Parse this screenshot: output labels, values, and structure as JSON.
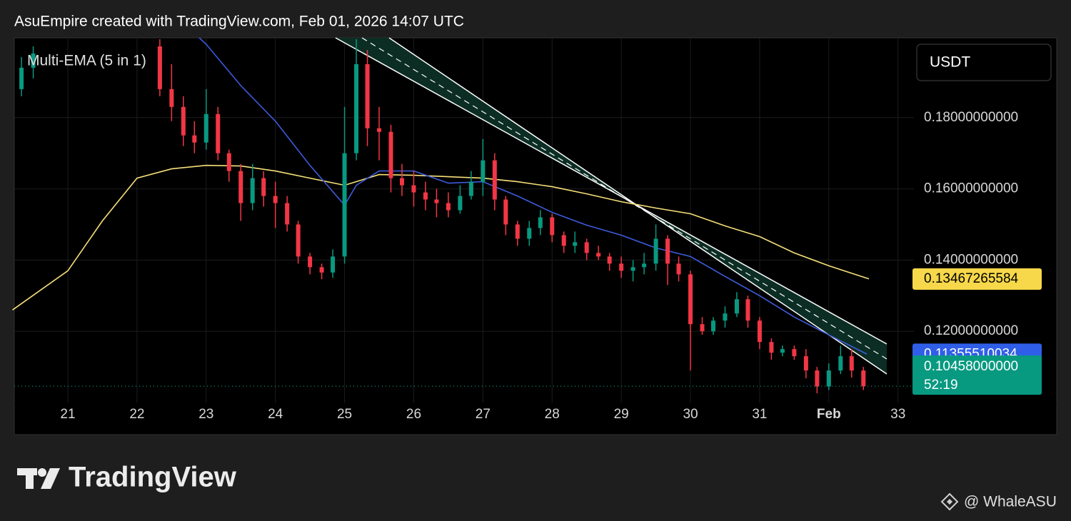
{
  "title": "AsuEmpire created with TradingView.com, Feb 01, 2026 14:07 UTC",
  "indicator_label": "Multi-EMA (5 in 1)",
  "currency": "USDT",
  "footer": {
    "brand": "TradingView",
    "author": "@ WhaleASU"
  },
  "chart_data": {
    "type": "candlestick",
    "up_color": "#089981",
    "down_color": "#f23645",
    "x": [
      20.33,
      20.5,
      22.33,
      22.5,
      22.67,
      22.83,
      23,
      23.17,
      23.33,
      23.5,
      23.67,
      23.83,
      24,
      24.17,
      24.33,
      24.5,
      24.67,
      24.83,
      25,
      25.17,
      25.33,
      25.5,
      25.67,
      25.83,
      26,
      26.17,
      26.33,
      26.5,
      26.67,
      26.83,
      27,
      27.17,
      27.33,
      27.5,
      27.67,
      27.83,
      28,
      28.17,
      28.33,
      28.5,
      28.67,
      28.83,
      29,
      29.17,
      29.33,
      29.5,
      29.67,
      29.83,
      30,
      30.17,
      30.33,
      30.5,
      30.67,
      30.83,
      31,
      31.17,
      31.33,
      31.5,
      31.67,
      31.83,
      32,
      32.17,
      32.33,
      32.5
    ],
    "open": [
      0.188,
      0.194,
      0.2,
      0.188,
      0.183,
      0.175,
      0.173,
      0.181,
      0.17,
      0.165,
      0.156,
      0.163,
      0.158,
      0.156,
      0.15,
      0.141,
      0.138,
      0.1365,
      0.141,
      0.17,
      0.195,
      0.177,
      0.176,
      0.163,
      0.161,
      0.159,
      0.157,
      0.156,
      0.154,
      0.158,
      0.162,
      0.168,
      0.157,
      0.15,
      0.146,
      0.149,
      0.152,
      0.147,
      0.144,
      0.145,
      0.142,
      0.141,
      0.139,
      0.137,
      0.138,
      0.139,
      0.146,
      0.139,
      0.136,
      0.122,
      0.12,
      0.123,
      0.125,
      0.129,
      0.123,
      0.117,
      0.114,
      0.115,
      0.113,
      0.109,
      0.1045,
      0.109,
      0.113,
      0.109
    ],
    "high": [
      0.197,
      0.2,
      0.202,
      0.195,
      0.186,
      0.179,
      0.188,
      0.183,
      0.171,
      0.167,
      0.167,
      0.165,
      0.162,
      0.158,
      0.151,
      0.142,
      0.139,
      0.143,
      0.183,
      0.202,
      0.199,
      0.183,
      0.178,
      0.167,
      0.165,
      0.162,
      0.16,
      0.159,
      0.161,
      0.165,
      0.174,
      0.17,
      0.158,
      0.151,
      0.151,
      0.154,
      0.153,
      0.148,
      0.148,
      0.146,
      0.144,
      0.142,
      0.141,
      0.14,
      0.142,
      0.15,
      0.147,
      0.141,
      0.137,
      0.124,
      0.124,
      0.127,
      0.131,
      0.13,
      0.124,
      0.118,
      0.116,
      0.116,
      0.115,
      0.11,
      0.111,
      0.116,
      0.115,
      0.11
    ],
    "low": [
      0.186,
      0.191,
      0.186,
      0.179,
      0.172,
      0.17,
      0.171,
      0.168,
      0.162,
      0.151,
      0.154,
      0.155,
      0.149,
      0.148,
      0.139,
      0.136,
      0.1346,
      0.135,
      0.139,
      0.168,
      0.172,
      0.168,
      0.159,
      0.158,
      0.155,
      0.154,
      0.152,
      0.152,
      0.153,
      0.157,
      0.158,
      0.154,
      0.147,
      0.144,
      0.144,
      0.147,
      0.145,
      0.142,
      0.142,
      0.14,
      0.14,
      0.137,
      0.135,
      0.134,
      0.136,
      0.137,
      0.133,
      0.134,
      0.109,
      0.119,
      0.119,
      0.121,
      0.124,
      0.121,
      0.115,
      0.112,
      0.113,
      0.112,
      0.1068,
      0.1026,
      0.1035,
      0.108,
      0.107,
      0.1035
    ],
    "close": [
      0.194,
      0.198,
      0.188,
      0.183,
      0.175,
      0.173,
      0.181,
      0.17,
      0.165,
      0.156,
      0.163,
      0.158,
      0.156,
      0.15,
      0.141,
      0.138,
      0.1365,
      0.141,
      0.17,
      0.195,
      0.177,
      0.176,
      0.163,
      0.161,
      0.159,
      0.157,
      0.156,
      0.154,
      0.158,
      0.162,
      0.168,
      0.157,
      0.15,
      0.146,
      0.149,
      0.152,
      0.147,
      0.144,
      0.145,
      0.142,
      0.141,
      0.139,
      0.137,
      0.138,
      0.139,
      0.146,
      0.139,
      0.136,
      0.122,
      0.12,
      0.123,
      0.125,
      0.129,
      0.123,
      0.117,
      0.114,
      0.115,
      0.113,
      0.109,
      0.1045,
      0.109,
      0.113,
      0.109,
      0.10458
    ],
    "ema_lines": [
      {
        "color": "#f7e07a",
        "x": [
          20.2,
          21,
          21.5,
          22,
          22.5,
          23,
          23.5,
          24,
          24.5,
          25,
          25.5,
          26,
          26.5,
          27,
          27.5,
          28,
          28.5,
          29,
          29.5,
          30,
          30.5,
          31,
          31.5,
          32,
          32.58
        ],
        "values": [
          0.126,
          0.137,
          0.151,
          0.163,
          0.1656,
          0.1666,
          0.1664,
          0.165,
          0.163,
          0.161,
          0.164,
          0.1638,
          0.1634,
          0.163,
          0.162,
          0.1606,
          0.1586,
          0.1564,
          0.1546,
          0.153,
          0.1496,
          0.1466,
          0.142,
          0.1384,
          0.1347
        ]
      },
      {
        "color": "#3d5bdb",
        "x": [
          22.9,
          23,
          23.5,
          24,
          24.5,
          25,
          25.17,
          25.5,
          26,
          26.5,
          27,
          27.5,
          28,
          28.5,
          29,
          29.5,
          30,
          30.5,
          31,
          31.5,
          32,
          32.55
        ],
        "values": [
          0.2024,
          0.2006,
          0.189,
          0.179,
          0.1666,
          0.1554,
          0.161,
          0.165,
          0.165,
          0.1616,
          0.162,
          0.158,
          0.1534,
          0.1498,
          0.147,
          0.1434,
          0.141,
          0.1354,
          0.13,
          0.124,
          0.119,
          0.1136
        ]
      }
    ],
    "price_labels": [
      {
        "value": 0.13467265584,
        "label": "0.13467265584",
        "color": "#f7d84a",
        "text_color": "#000000"
      },
      {
        "value": 0.11355510034,
        "label": "0.11355510034",
        "color": "#2f5fe8",
        "text_color": "#ffffff"
      },
      {
        "value": 0.10458,
        "label": "0.10458000000",
        "countdown": "52:19",
        "color": "#089981",
        "text_color": "#ffffff"
      }
    ],
    "xlim": [
      20.226,
      33.23
    ],
    "ylim": [
      0.0998,
      0.2024
    ],
    "xticks": [
      21,
      22,
      23,
      24,
      25,
      26,
      27,
      28,
      29,
      30,
      31,
      {
        "value": 32,
        "label": "Feb"
      },
      33
    ],
    "yticks": [
      {
        "value": 0.12,
        "label": "0.12000000000"
      },
      {
        "value": 0.14,
        "label": "0.14000000000"
      },
      {
        "value": 0.16,
        "label": "0.16000000000"
      },
      {
        "value": 0.18,
        "label": "0.18000000000"
      }
    ],
    "grid": true
  }
}
